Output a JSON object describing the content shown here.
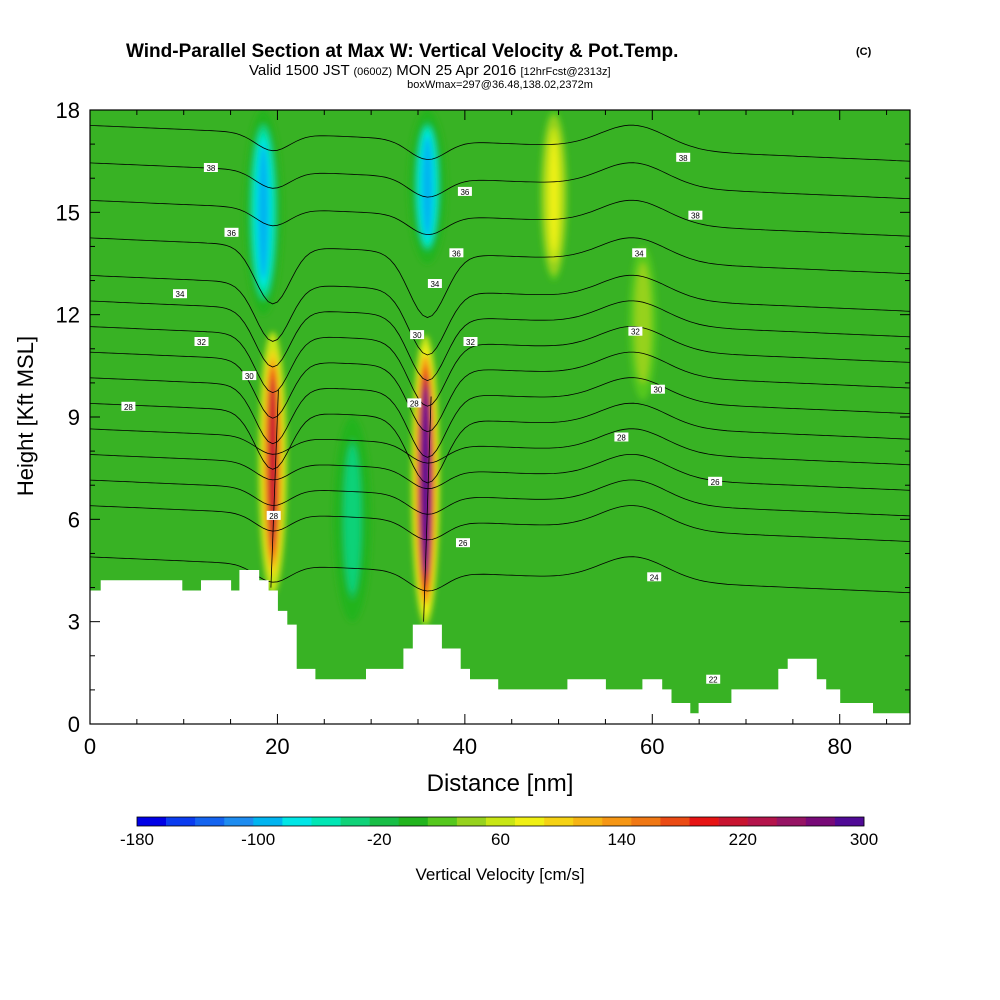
{
  "header": {
    "title": "Wind-Parallel Section at Max W: Vertical Velocity & Pot.Temp.",
    "copyright": "(C)",
    "valid_a": "Valid 1500 JST",
    "valid_b": "(0600Z)",
    "valid_c": "MON 25 Apr 2016",
    "valid_d": "[12hrFcst@2313z]",
    "box": "boxWmax=297@36.48,138.02,2372m"
  },
  "chart_data": {
    "type": "heatmap",
    "xlabel": "Distance [nm]",
    "ylabel": "Height [Kft MSL]",
    "xlim": [
      0,
      87.5
    ],
    "ylim": [
      0,
      18
    ],
    "x_ticks": [
      0,
      20,
      40,
      60,
      80
    ],
    "y_ticks": [
      0,
      3,
      6,
      9,
      12,
      15,
      18
    ],
    "background_w_cm_s": 0,
    "updrafts": [
      {
        "x": 19.5,
        "ybot": 3.8,
        "ytop": 11.5,
        "peak_w": 220
      },
      {
        "x": 35.8,
        "ybot": 2.9,
        "ytop": 11.4,
        "peak_w": 297
      },
      {
        "x": 49.5,
        "ybot": 13.0,
        "ytop": 18.0,
        "peak_w": 80
      },
      {
        "x": 59.0,
        "ybot": 9.5,
        "ytop": 14.0,
        "peak_w": 40
      }
    ],
    "downdrafts": [
      {
        "x": 18.5,
        "ybot": 12.0,
        "ytop": 18.0,
        "peak_w": -110
      },
      {
        "x": 36.0,
        "ybot": 13.5,
        "ytop": 18.0,
        "peak_w": -100
      },
      {
        "x": 28.0,
        "ybot": 3.0,
        "ytop": 9.0,
        "peak_w": -50
      }
    ],
    "terrain_kft": [
      [
        0,
        3.9
      ],
      [
        1.2,
        3.9
      ],
      [
        1.2,
        4.2
      ],
      [
        9.8,
        4.2
      ],
      [
        9.8,
        3.9
      ],
      [
        11.9,
        3.9
      ],
      [
        11.9,
        4.2
      ],
      [
        15.0,
        4.2
      ],
      [
        15.0,
        3.9
      ],
      [
        16.0,
        3.9
      ],
      [
        16.0,
        4.5
      ],
      [
        18.0,
        4.5
      ],
      [
        18.0,
        4.2
      ],
      [
        19.0,
        4.2
      ],
      [
        19.0,
        3.9
      ],
      [
        20.0,
        3.9
      ],
      [
        20.0,
        3.3
      ],
      [
        21.0,
        3.3
      ],
      [
        21.0,
        2.9
      ],
      [
        22.0,
        2.9
      ],
      [
        22.0,
        1.6
      ],
      [
        24.0,
        1.6
      ],
      [
        24.0,
        1.3
      ],
      [
        29.5,
        1.3
      ],
      [
        29.5,
        1.6
      ],
      [
        33.5,
        1.6
      ],
      [
        33.5,
        2.2
      ],
      [
        34.5,
        2.2
      ],
      [
        34.5,
        2.9
      ],
      [
        37.5,
        2.9
      ],
      [
        37.5,
        2.2
      ],
      [
        39.5,
        2.2
      ],
      [
        39.5,
        1.6
      ],
      [
        40.5,
        1.6
      ],
      [
        40.5,
        1.3
      ],
      [
        43.5,
        1.3
      ],
      [
        43.5,
        1.0
      ],
      [
        51.0,
        1.0
      ],
      [
        51.0,
        1.3
      ],
      [
        55.0,
        1.3
      ],
      [
        55.0,
        1.0
      ],
      [
        59.0,
        1.0
      ],
      [
        59.0,
        1.3
      ],
      [
        61.0,
        1.3
      ],
      [
        61.0,
        1.0
      ],
      [
        62.0,
        1.0
      ],
      [
        62.0,
        0.6
      ],
      [
        64.0,
        0.6
      ],
      [
        64.0,
        0.3
      ],
      [
        65.0,
        0.3
      ],
      [
        65.0,
        0.6
      ],
      [
        68.5,
        0.6
      ],
      [
        68.5,
        1.0
      ],
      [
        73.5,
        1.0
      ],
      [
        73.5,
        1.6
      ],
      [
        74.5,
        1.6
      ],
      [
        74.5,
        1.9
      ],
      [
        77.5,
        1.9
      ],
      [
        77.5,
        1.3
      ],
      [
        78.5,
        1.3
      ],
      [
        78.5,
        1.0
      ],
      [
        80.0,
        1.0
      ],
      [
        80.0,
        0.6
      ],
      [
        83.5,
        0.6
      ],
      [
        83.5,
        0.3
      ],
      [
        87.5,
        0.3
      ]
    ],
    "contour_labels": [
      {
        "text": "38",
        "x": 12.9,
        "y": 16.3
      },
      {
        "text": "36",
        "x": 15.1,
        "y": 14.4
      },
      {
        "text": "34",
        "x": 9.6,
        "y": 12.6
      },
      {
        "text": "32",
        "x": 11.9,
        "y": 11.2
      },
      {
        "text": "30",
        "x": 17.0,
        "y": 10.2
      },
      {
        "text": "28",
        "x": 4.1,
        "y": 9.3
      },
      {
        "text": "28",
        "x": 19.6,
        "y": 6.1
      },
      {
        "text": "36",
        "x": 40.0,
        "y": 15.6
      },
      {
        "text": "36",
        "x": 39.1,
        "y": 13.8
      },
      {
        "text": "34",
        "x": 36.8,
        "y": 12.9
      },
      {
        "text": "30",
        "x": 34.9,
        "y": 11.4
      },
      {
        "text": "32",
        "x": 40.6,
        "y": 11.2
      },
      {
        "text": "28",
        "x": 34.6,
        "y": 9.4
      },
      {
        "text": "26",
        "x": 39.8,
        "y": 5.3
      },
      {
        "text": "38",
        "x": 63.3,
        "y": 16.6
      },
      {
        "text": "38",
        "x": 64.6,
        "y": 14.9
      },
      {
        "text": "34",
        "x": 58.6,
        "y": 13.8
      },
      {
        "text": "32",
        "x": 58.2,
        "y": 11.5
      },
      {
        "text": "30",
        "x": 60.6,
        "y": 9.8
      },
      {
        "text": "28",
        "x": 56.7,
        "y": 8.4
      },
      {
        "text": "26",
        "x": 66.7,
        "y": 7.1
      },
      {
        "text": "24",
        "x": 60.2,
        "y": 4.3
      },
      {
        "text": "22",
        "x": 66.5,
        "y": 1.3
      }
    ],
    "isentrope_levels": [
      "22",
      "24",
      "25",
      "26",
      "27",
      "28",
      "29",
      "30",
      "31",
      "32",
      "33",
      "34",
      "35",
      "36",
      "37",
      "38",
      "39"
    ],
    "colorbar": {
      "label": "Vertical Velocity [cm/s]",
      "ticks": [
        "-180",
        "-100",
        "-20",
        "60",
        "140",
        "220",
        "300"
      ],
      "colors": [
        "#0000e6",
        "#0a3cf0",
        "#1464f0",
        "#1e8cf0",
        "#00b4f0",
        "#00e6e6",
        "#00e6b4",
        "#10d278",
        "#18be46",
        "#22b41e",
        "#55c81e",
        "#96d21e",
        "#c8e614",
        "#f0f014",
        "#f5d214",
        "#f5b414",
        "#f59614",
        "#f07814",
        "#eb4b14",
        "#e61414",
        "#c81430",
        "#b4144b",
        "#961464",
        "#780a78",
        "#500a96"
      ]
    }
  }
}
